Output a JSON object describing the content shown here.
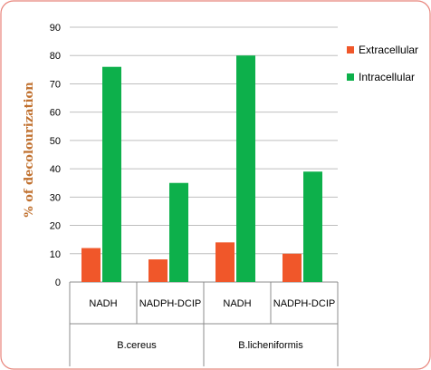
{
  "chart_data": {
    "type": "bar",
    "ylabel": "% of decolourization",
    "ylim": [
      0,
      90
    ],
    "yticks": [
      0,
      10,
      20,
      30,
      40,
      50,
      60,
      70,
      80,
      90
    ],
    "grid": true,
    "legend_position": "right",
    "categories": [
      "NADH",
      "NADPH-DCIP",
      "NADH",
      "NADPH-DCIP"
    ],
    "groups": [
      {
        "label": "B.cereus",
        "span": [
          0,
          1
        ]
      },
      {
        "label": "B.licheniformis",
        "span": [
          2,
          3
        ]
      }
    ],
    "series": [
      {
        "name": "Extracellular",
        "color": "#f0572a",
        "values": [
          12,
          8,
          14,
          10
        ]
      },
      {
        "name": "Intracellular",
        "color": "#0db04b",
        "values": [
          76,
          35,
          80,
          39
        ]
      }
    ]
  },
  "colors": {
    "frame_border": "#e8837a",
    "grid": "#bfbfbf",
    "axis_title": "#c0702e"
  }
}
